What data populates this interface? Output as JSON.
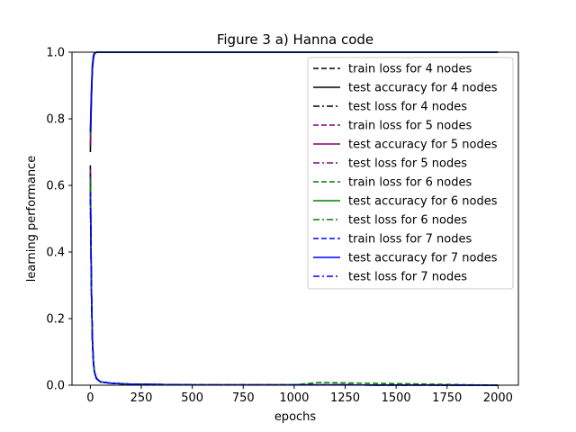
{
  "chart_data": {
    "type": "line",
    "title": "Figure 3 a) Hanna code",
    "xlabel": "epochs",
    "ylabel": "learning performance",
    "xlim": [
      -90,
      2100
    ],
    "ylim": [
      0,
      1
    ],
    "xticks": [
      0,
      250,
      500,
      750,
      1000,
      1250,
      1500,
      1750,
      2000
    ],
    "yticks": [
      0.0,
      0.2,
      0.4,
      0.6,
      0.8,
      1.0
    ],
    "xtick_labels": [
      "0",
      "250",
      "500",
      "750",
      "1000",
      "1250",
      "1500",
      "1750",
      "2000"
    ],
    "ytick_labels": [
      "0.0",
      "0.2",
      "0.4",
      "0.6",
      "0.8",
      "1.0"
    ],
    "grid": false,
    "legend_position": "top-right",
    "series": [
      {
        "name": "train loss for 4 nodes",
        "color": "#000000",
        "style": "dashed",
        "x": [
          0,
          5,
          10,
          15,
          20,
          30,
          50,
          100,
          200,
          500,
          1000,
          2000
        ],
        "y": [
          0.66,
          0.3,
          0.14,
          0.07,
          0.04,
          0.02,
          0.01,
          0.006,
          0.003,
          0.001,
          0.001,
          0.0
        ]
      },
      {
        "name": "test accuracy for 4 nodes",
        "color": "#000000",
        "style": "solid",
        "x": [
          0,
          5,
          10,
          15,
          20,
          30,
          50,
          2000
        ],
        "y": [
          0.7,
          0.85,
          0.95,
          0.98,
          0.995,
          1.0,
          1.0,
          1.0
        ]
      },
      {
        "name": "test loss for 4 nodes",
        "color": "#000000",
        "style": "dashdot",
        "x": [
          0,
          5,
          10,
          15,
          20,
          30,
          50,
          100,
          200,
          500,
          1000,
          2000
        ],
        "y": [
          0.64,
          0.3,
          0.14,
          0.07,
          0.04,
          0.02,
          0.01,
          0.006,
          0.003,
          0.001,
          0.001,
          0.0
        ]
      },
      {
        "name": "train loss for 5 nodes",
        "color": "#800080",
        "style": "dashed",
        "x": [
          0,
          5,
          10,
          15,
          20,
          30,
          50,
          100,
          200,
          500,
          1000,
          2000
        ],
        "y": [
          0.65,
          0.3,
          0.14,
          0.07,
          0.04,
          0.02,
          0.01,
          0.006,
          0.003,
          0.001,
          0.001,
          0.0
        ]
      },
      {
        "name": "test accuracy for 5 nodes",
        "color": "#800080",
        "style": "solid",
        "x": [
          0,
          5,
          10,
          15,
          20,
          30,
          50,
          2000
        ],
        "y": [
          0.72,
          0.86,
          0.95,
          0.985,
          0.995,
          1.0,
          1.0,
          1.0
        ]
      },
      {
        "name": "test loss for 5 nodes",
        "color": "#800080",
        "style": "dashdot",
        "x": [
          0,
          5,
          10,
          15,
          20,
          30,
          50,
          100,
          200,
          500,
          1000,
          2000
        ],
        "y": [
          0.63,
          0.3,
          0.14,
          0.07,
          0.04,
          0.02,
          0.01,
          0.006,
          0.003,
          0.001,
          0.001,
          0.0
        ]
      },
      {
        "name": "train loss for 6 nodes",
        "color": "#008000",
        "style": "dashed",
        "x": [
          0,
          5,
          10,
          15,
          20,
          30,
          50,
          100,
          200,
          500,
          1000,
          1120,
          2000
        ],
        "y": [
          0.62,
          0.3,
          0.14,
          0.07,
          0.04,
          0.02,
          0.01,
          0.006,
          0.003,
          0.001,
          0.001,
          0.008,
          0.0
        ]
      },
      {
        "name": "test accuracy for 6 nodes",
        "color": "#008000",
        "style": "solid",
        "x": [
          0,
          5,
          10,
          15,
          20,
          30,
          50,
          2000
        ],
        "y": [
          0.75,
          0.87,
          0.96,
          0.985,
          0.995,
          1.0,
          1.0,
          1.0
        ]
      },
      {
        "name": "test loss for 6 nodes",
        "color": "#008000",
        "style": "dashdot",
        "x": [
          0,
          5,
          10,
          15,
          20,
          30,
          50,
          100,
          200,
          500,
          1000,
          2000
        ],
        "y": [
          0.6,
          0.3,
          0.14,
          0.07,
          0.04,
          0.02,
          0.01,
          0.006,
          0.003,
          0.001,
          0.001,
          0.0
        ]
      },
      {
        "name": "train loss for 7 nodes",
        "color": "#0000ff",
        "style": "dashed",
        "x": [
          0,
          5,
          10,
          15,
          20,
          30,
          50,
          100,
          200,
          500,
          1000,
          2000
        ],
        "y": [
          0.58,
          0.3,
          0.14,
          0.07,
          0.04,
          0.02,
          0.01,
          0.006,
          0.003,
          0.001,
          0.001,
          0.0
        ]
      },
      {
        "name": "test accuracy for 7 nodes",
        "color": "#0000ff",
        "style": "solid",
        "x": [
          0,
          5,
          10,
          15,
          20,
          30,
          50,
          2000
        ],
        "y": [
          0.76,
          0.88,
          0.96,
          0.99,
          0.998,
          1.0,
          1.0,
          1.0
        ]
      },
      {
        "name": "test loss for 7 nodes",
        "color": "#0000ff",
        "style": "dashdot",
        "x": [
          0,
          5,
          10,
          15,
          20,
          30,
          50,
          100,
          200,
          500,
          1000,
          2000
        ],
        "y": [
          0.56,
          0.3,
          0.14,
          0.07,
          0.04,
          0.02,
          0.01,
          0.006,
          0.003,
          0.001,
          0.001,
          0.0
        ]
      }
    ]
  }
}
